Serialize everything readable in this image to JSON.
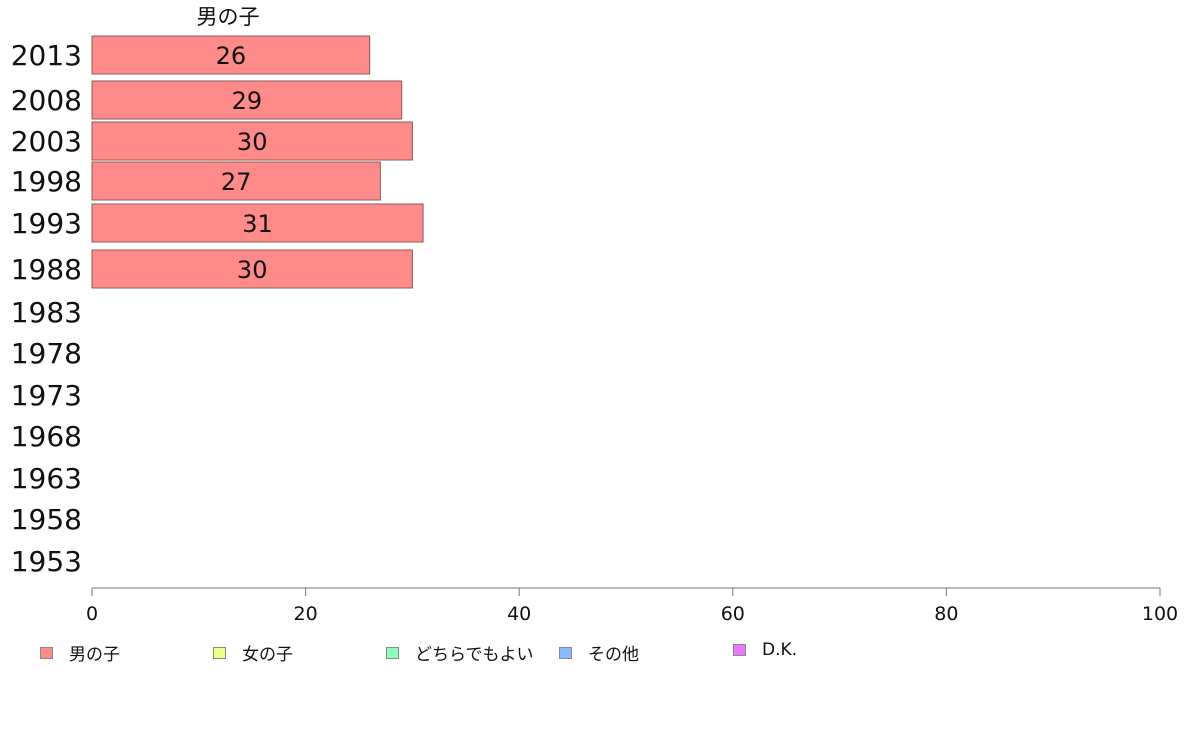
{
  "chart_data": {
    "type": "bar",
    "orientation": "horizontal",
    "series_label": "男の子",
    "categories": [
      "2013",
      "2008",
      "2003",
      "1998",
      "1993",
      "1988",
      "1983",
      "1978",
      "1973",
      "1968",
      "1963",
      "1958",
      "1953"
    ],
    "values": [
      26,
      29,
      30,
      27,
      31,
      30,
      null,
      null,
      null,
      null,
      null,
      null,
      null
    ],
    "xlim": [
      0,
      100
    ],
    "xticks": [
      0,
      20,
      40,
      60,
      80,
      100
    ],
    "grid": false,
    "legend_position": "bottom",
    "bar_color": "#ff8a8a",
    "legend": [
      {
        "label": "男の子",
        "color": "#ff8a8a"
      },
      {
        "label": "女の子",
        "color": "#eeff88"
      },
      {
        "label": "どちらでもよい",
        "color": "#88ffbb"
      },
      {
        "label": "その他",
        "color": "#88b8ff"
      },
      {
        "label": "D.K.",
        "color": "#ee77ff"
      }
    ]
  }
}
